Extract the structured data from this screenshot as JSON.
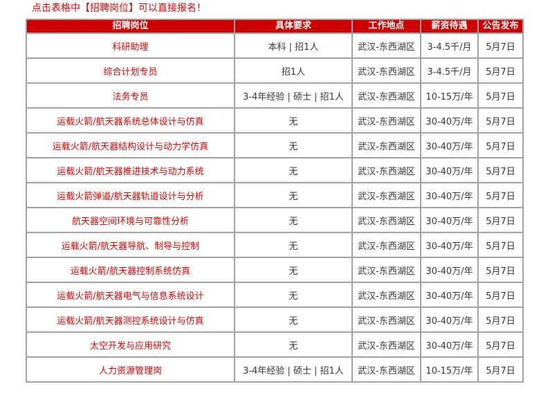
{
  "notice": "点击表格中【招聘岗位】可以直接报名！",
  "colors": {
    "header_bg": "#cc0000",
    "link": "#e00000",
    "border": "#a0a0a0"
  },
  "headers": [
    "招聘岗位",
    "具体要求",
    "工作地点",
    "薪资待遇",
    "公告发布"
  ],
  "rows": [
    [
      "科研助理",
      "本科 | 招1人",
      "武汉-东西湖区",
      "3-4.5千/月",
      "5月7日"
    ],
    [
      "综合计划专员",
      "招1人",
      "武汉-东西湖区",
      "3-4.5千/月",
      "5月7日"
    ],
    [
      "法务专员",
      "3-4年经验 | 硕士 | 招1人",
      "武汉-东西湖区",
      "10-15万/年",
      "5月7日"
    ],
    [
      "运载火箭/航天器系统总体设计与仿真",
      "无",
      "武汉-东西湖区",
      "30-40万/年",
      "5月7日"
    ],
    [
      "运载火箭/航天器结构设计与动力学仿真",
      "无",
      "武汉-东西湖区",
      "30-40万/年",
      "5月7日"
    ],
    [
      "运载火箭/航天器推进技术与动力系统",
      "无",
      "武汉-东西湖区",
      "30-40万/年",
      "5月7日"
    ],
    [
      "运载火箭弹道/航天器轨道设计与分析",
      "无",
      "武汉-东西湖区",
      "30-40万/年",
      "5月7日"
    ],
    [
      "航天器空间环境与可靠性分析",
      "无",
      "武汉-东西湖区",
      "30-40万/年",
      "5月7日"
    ],
    [
      "运载火箭/航天器导航、制导与控制",
      "无",
      "武汉-东西湖区",
      "30-40万/年",
      "5月7日"
    ],
    [
      "运载火箭/航天器控制系统仿真",
      "无",
      "武汉-东西湖区",
      "30-40万/年",
      "5月7日"
    ],
    [
      "运载火箭/航天器电气与信息系统设计",
      "无",
      "武汉-东西湖区",
      "30-40万/年",
      "5月7日"
    ],
    [
      "运载火箭/航天器测控系统设计与仿真",
      "无",
      "武汉-东西湖区",
      "30-40万/年",
      "5月7日"
    ],
    [
      "太空开发与应用研究",
      "无",
      "武汉-东西湖区",
      "30-40万/年",
      "5月7日"
    ],
    [
      "人力资源管理岗",
      "3-4年经验 | 硕士 | 招1人",
      "武汉-东西湖区",
      "10-15万/年",
      "5月7日"
    ]
  ]
}
